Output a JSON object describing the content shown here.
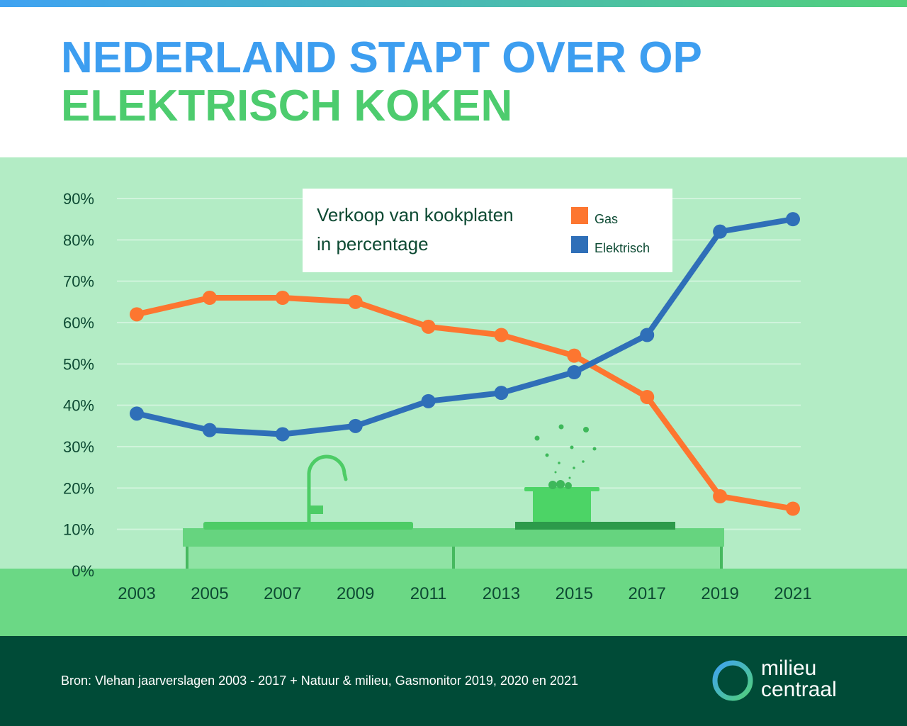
{
  "header": {
    "title_line1": "NEDERLAND STAPT OVER OP",
    "title_line2": "ELEKTRISCH KOKEN"
  },
  "colors": {
    "title1": "#3d9ef0",
    "title2": "#4dcc6e",
    "chart_bg": "#b3ecc5",
    "ground": "#6bd885",
    "gridline": "#d0f4dc",
    "axis_text": "#0d4a33",
    "gas": "#fd7630",
    "elektrisch": "#2f6fb8",
    "footer_bg": "#004b37",
    "counter_top": "#66d47f",
    "counter_body": "#8fe3a4",
    "counter_edge": "#46b95f",
    "sink": "#4dcc66",
    "hob": "#2c9a4a",
    "pot": "#4cd466",
    "steam": "#3eb85a"
  },
  "chart_data": {
    "type": "line",
    "categories": [
      "2003",
      "2005",
      "2007",
      "2009",
      "2011",
      "2013",
      "2015",
      "2017",
      "2019",
      "2021"
    ],
    "series": [
      {
        "name": "Gas",
        "color": "#fd7630",
        "values": [
          62,
          66,
          66,
          65,
          59,
          57,
          52,
          42,
          18,
          15
        ]
      },
      {
        "name": "Elektrisch",
        "color": "#2f6fb8",
        "values": [
          38,
          34,
          33,
          35,
          41,
          43,
          48,
          57,
          82,
          85
        ]
      }
    ],
    "y_ticks": [
      "0%",
      "10%",
      "20%",
      "30%",
      "40%",
      "50%",
      "60%",
      "70%",
      "80%",
      "90%"
    ],
    "ylim": [
      0,
      90
    ],
    "grid": true,
    "legend_title_line1": "Verkoop van kookplaten",
    "legend_title_line2": "in percentage",
    "legend_position": "top-center"
  },
  "footer": {
    "source": "Bron: Vlehan jaarverslagen 2003 - 2017 + Natuur & milieu, Gasmonitor 2019, 2020 en 2021",
    "logo_line1": "milieu",
    "logo_line2": "centraal",
    "logo_icon": "ring-logo-icon"
  }
}
